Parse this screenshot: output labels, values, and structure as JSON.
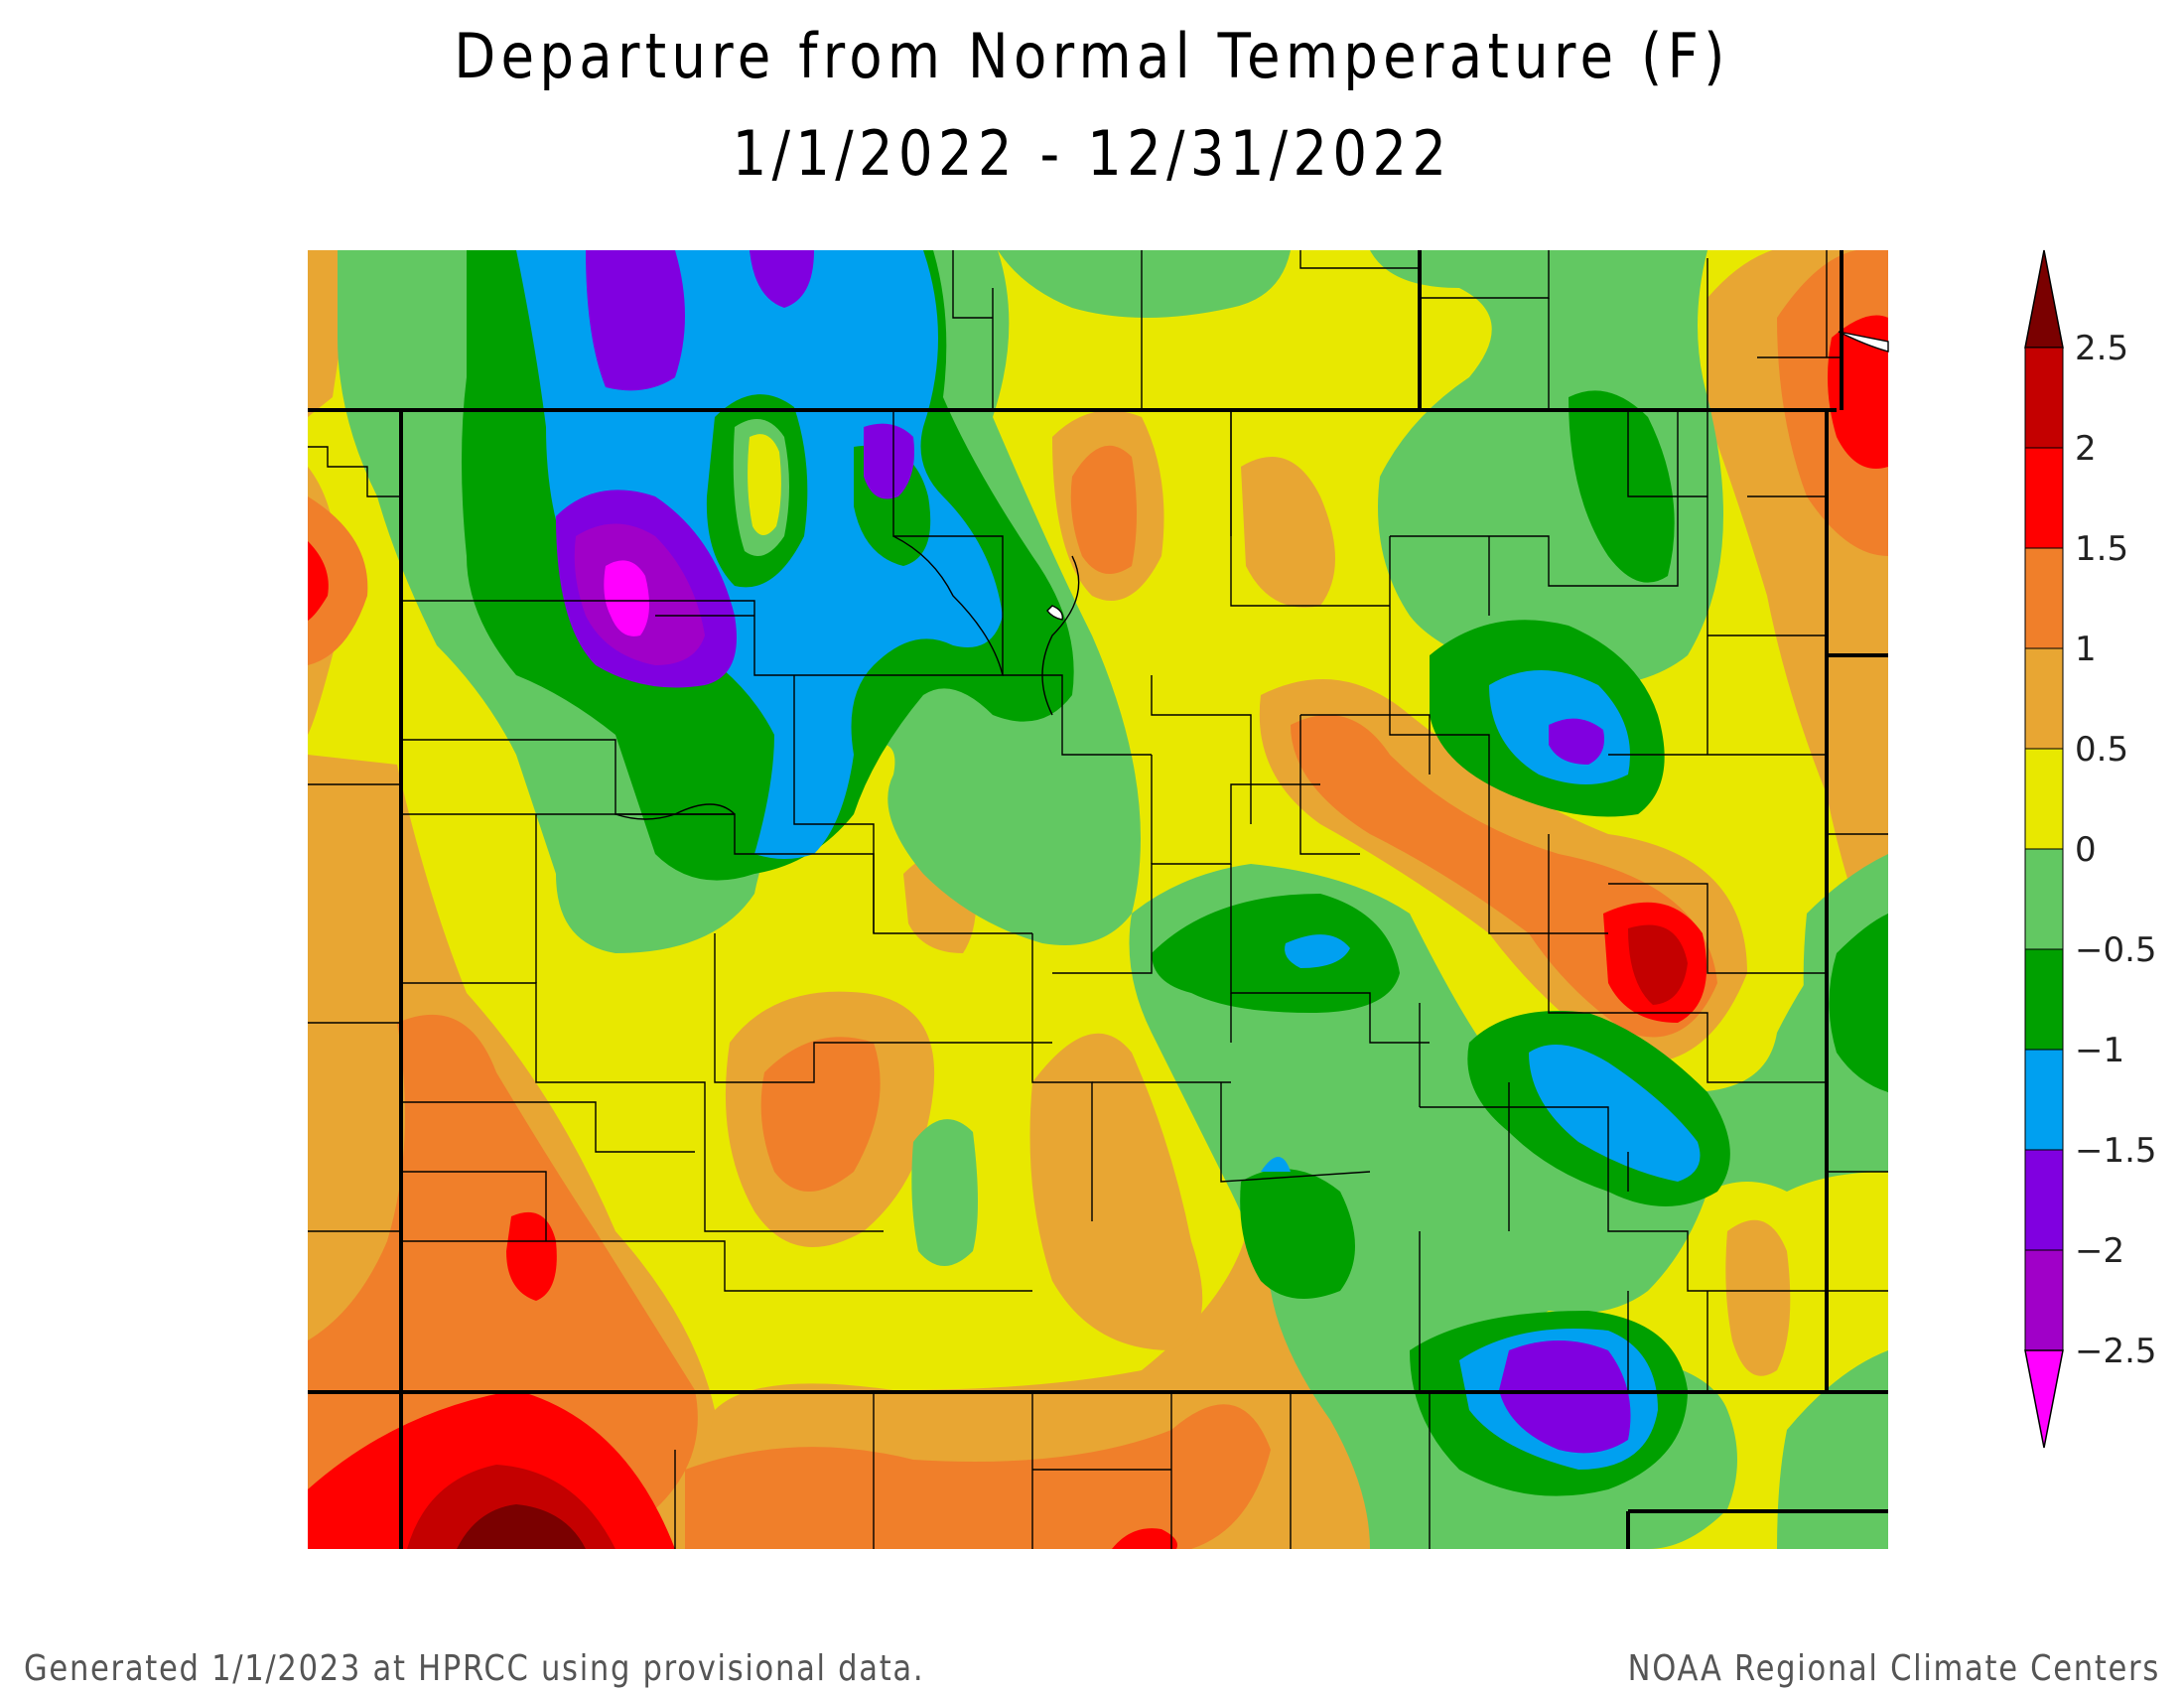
{
  "title": {
    "line1": "Departure from Normal Temperature (F)",
    "line2": "1/1/2022 - 12/31/2022"
  },
  "footer": {
    "left": "Generated 1/1/2023 at HPRCC using provisional data.",
    "right": "NOAA Regional Climate Centers"
  },
  "legend": {
    "labels": [
      "2.5",
      "2",
      "1.5",
      "1",
      "0.5",
      "0",
      "−0.5",
      "−1",
      "−1.5",
      "−2",
      "−2.5"
    ],
    "colors": {
      "above_2_5": "#7a0000",
      "2_to_2_5": "#c40000",
      "1_5_to_2": "#ff0000",
      "1_to_1_5": "#f07f2a",
      "0_5_to_1": "#e8a633",
      "0_to_0_5": "#e8e800",
      "m0_5_to_0": "#62c862",
      "m1_to_m0_5": "#00a000",
      "m1_5_to_m1": "#00a0f0",
      "m2_to_m1_5": "#8000e0",
      "m2_5_to_m2": "#a000c8",
      "below_m2_5": "#ff00ff"
    }
  }
}
